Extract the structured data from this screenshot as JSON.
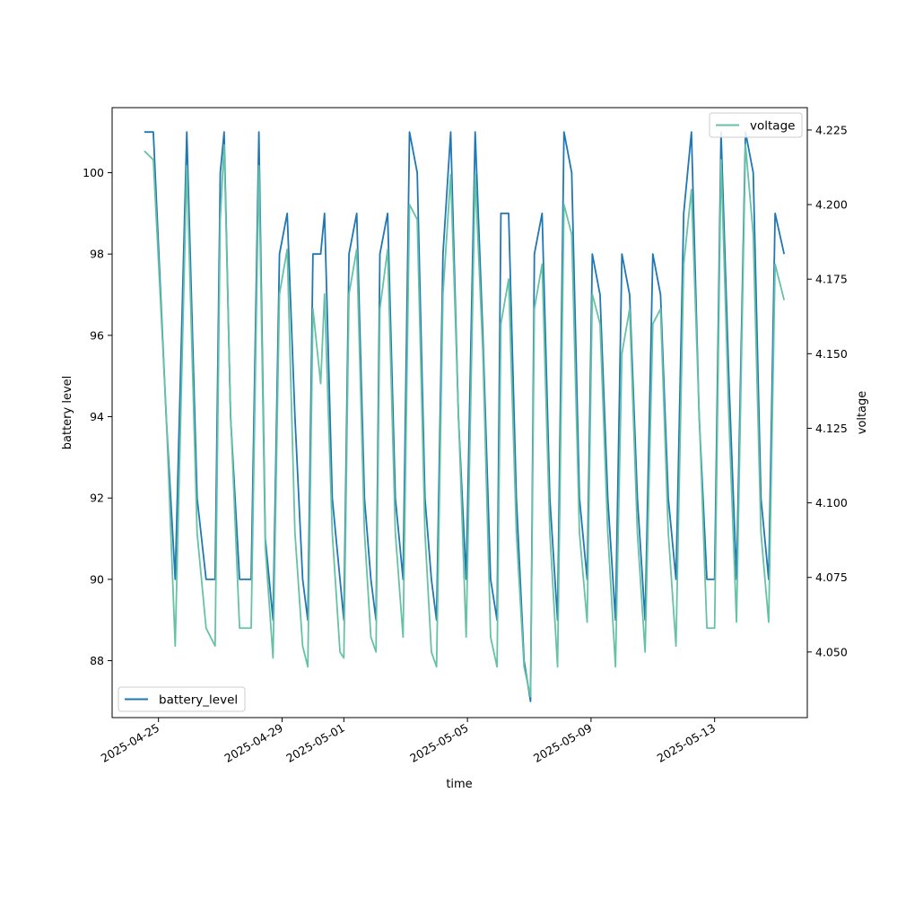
{
  "chart_data": {
    "type": "line",
    "title": "",
    "xlabel": "time",
    "ylabel": "battery level",
    "y2label": "voltage",
    "x_tick_labels": [
      "2025-04-25",
      "2025-04-29",
      "2025-05-01",
      "2025-05-05",
      "2025-05-09",
      "2025-05-13"
    ],
    "y_ticks": [
      88,
      90,
      92,
      94,
      96,
      98,
      100
    ],
    "y_tick_labels": [
      "88",
      "90",
      "92",
      "94",
      "96",
      "98",
      "100"
    ],
    "y2_ticks": [
      4.05,
      4.075,
      4.1,
      4.125,
      4.15,
      4.175,
      4.2,
      4.225
    ],
    "y2_tick_labels": [
      "4.050",
      "4.075",
      "4.100",
      "4.125",
      "4.150",
      "4.175",
      "4.200",
      "4.225"
    ],
    "xlim": [
      "2025-04-23T12:00",
      "2025-05-16T00:00"
    ],
    "ylim": [
      86.6,
      101.6
    ],
    "y2lim": [
      4.028,
      4.2325
    ],
    "legend_primary_position": "lower-left",
    "legend_secondary_position": "upper-right",
    "grid": false,
    "series": [
      {
        "name": "battery_level",
        "axis": "left",
        "color": "#1f77b4",
        "points": [
          [
            "2025-04-24T13:00",
            101
          ],
          [
            "2025-04-24T20:00",
            101
          ],
          [
            "2025-04-25T06:00",
            94
          ],
          [
            "2025-04-25T13:00",
            90
          ],
          [
            "2025-04-25T22:00",
            101
          ],
          [
            "2025-04-26T06:00",
            92
          ],
          [
            "2025-04-26T13:00",
            90
          ],
          [
            "2025-04-26T20:00",
            90
          ],
          [
            "2025-04-27T00:00",
            100
          ],
          [
            "2025-04-27T03:00",
            101
          ],
          [
            "2025-04-27T08:00",
            94
          ],
          [
            "2025-04-27T15:00",
            90
          ],
          [
            "2025-04-28T00:00",
            90
          ],
          [
            "2025-04-28T06:00",
            101
          ],
          [
            "2025-04-28T11:00",
            91
          ],
          [
            "2025-04-28T17:00",
            89
          ],
          [
            "2025-04-28T22:00",
            98
          ],
          [
            "2025-04-29T04:00",
            99
          ],
          [
            "2025-04-29T10:00",
            94
          ],
          [
            "2025-04-29T16:00",
            90
          ],
          [
            "2025-04-29T20:00",
            89
          ],
          [
            "2025-04-30T00:00",
            98
          ],
          [
            "2025-04-30T06:00",
            98
          ],
          [
            "2025-04-30T09:00",
            99
          ],
          [
            "2025-04-30T15:00",
            92
          ],
          [
            "2025-04-30T21:00",
            90
          ],
          [
            "2025-05-01T00:00",
            89
          ],
          [
            "2025-05-01T04:00",
            98
          ],
          [
            "2025-05-01T10:00",
            99
          ],
          [
            "2025-05-01T16:00",
            92
          ],
          [
            "2025-05-01T21:00",
            90
          ],
          [
            "2025-05-02T01:00",
            89
          ],
          [
            "2025-05-02T04:00",
            98
          ],
          [
            "2025-05-02T10:00",
            99
          ],
          [
            "2025-05-02T16:00",
            92
          ],
          [
            "2025-05-02T22:00",
            90
          ],
          [
            "2025-05-03T03:00",
            101
          ],
          [
            "2025-05-03T09:00",
            100
          ],
          [
            "2025-05-03T15:00",
            92
          ],
          [
            "2025-05-03T20:00",
            90
          ],
          [
            "2025-05-04T00:00",
            89
          ],
          [
            "2025-05-04T05:00",
            98
          ],
          [
            "2025-05-04T11:00",
            101
          ],
          [
            "2025-05-04T17:00",
            94
          ],
          [
            "2025-05-04T23:00",
            90
          ],
          [
            "2025-05-05T06:00",
            101
          ],
          [
            "2025-05-05T12:00",
            96
          ],
          [
            "2025-05-05T18:00",
            90
          ],
          [
            "2025-05-05T23:00",
            89
          ],
          [
            "2025-05-06T02:00",
            99
          ],
          [
            "2025-05-06T08:00",
            99
          ],
          [
            "2025-05-06T14:00",
            92
          ],
          [
            "2025-05-06T20:00",
            88
          ],
          [
            "2025-05-07T01:00",
            87
          ],
          [
            "2025-05-07T04:00",
            98
          ],
          [
            "2025-05-07T10:00",
            99
          ],
          [
            "2025-05-07T16:00",
            92
          ],
          [
            "2025-05-07T22:00",
            89
          ],
          [
            "2025-05-08T03:00",
            101
          ],
          [
            "2025-05-08T09:00",
            100
          ],
          [
            "2025-05-08T15:00",
            92
          ],
          [
            "2025-05-08T21:00",
            90
          ],
          [
            "2025-05-09T01:00",
            98
          ],
          [
            "2025-05-09T07:00",
            97
          ],
          [
            "2025-05-09T13:00",
            92
          ],
          [
            "2025-05-09T19:00",
            89
          ],
          [
            "2025-05-10T00:00",
            98
          ],
          [
            "2025-05-10T06:00",
            97
          ],
          [
            "2025-05-10T12:00",
            92
          ],
          [
            "2025-05-10T18:00",
            89
          ],
          [
            "2025-05-11T00:00",
            98
          ],
          [
            "2025-05-11T06:00",
            97
          ],
          [
            "2025-05-11T12:00",
            92
          ],
          [
            "2025-05-11T18:00",
            90
          ],
          [
            "2025-05-12T00:00",
            99
          ],
          [
            "2025-05-12T06:00",
            101
          ],
          [
            "2025-05-12T12:00",
            94
          ],
          [
            "2025-05-12T18:00",
            90
          ],
          [
            "2025-05-13T00:00",
            90
          ],
          [
            "2025-05-13T05:00",
            101
          ],
          [
            "2025-05-13T11:00",
            95
          ],
          [
            "2025-05-13T17:00",
            90
          ],
          [
            "2025-05-14T00:00",
            101
          ],
          [
            "2025-05-14T06:00",
            100
          ],
          [
            "2025-05-14T12:00",
            92
          ],
          [
            "2025-05-14T18:00",
            90
          ],
          [
            "2025-05-14T23:00",
            99
          ],
          [
            "2025-05-15T06:00",
            98
          ]
        ]
      },
      {
        "name": "voltage",
        "axis": "right",
        "color": "#66c2a5",
        "points": [
          [
            "2025-04-24T13:00",
            4.218
          ],
          [
            "2025-04-24T20:00",
            4.215
          ],
          [
            "2025-04-25T06:00",
            4.13
          ],
          [
            "2025-04-25T13:00",
            4.052
          ],
          [
            "2025-04-25T22:00",
            4.213
          ],
          [
            "2025-04-26T06:00",
            4.09
          ],
          [
            "2025-04-26T13:00",
            4.058
          ],
          [
            "2025-04-26T20:00",
            4.052
          ],
          [
            "2025-04-27T00:00",
            4.195
          ],
          [
            "2025-04-27T03:00",
            4.22
          ],
          [
            "2025-04-27T08:00",
            4.13
          ],
          [
            "2025-04-27T15:00",
            4.058
          ],
          [
            "2025-04-28T00:00",
            4.058
          ],
          [
            "2025-04-28T06:00",
            4.213
          ],
          [
            "2025-04-28T11:00",
            4.085
          ],
          [
            "2025-04-28T17:00",
            4.048
          ],
          [
            "2025-04-28T22:00",
            4.17
          ],
          [
            "2025-04-29T04:00",
            4.185
          ],
          [
            "2025-04-29T10:00",
            4.09
          ],
          [
            "2025-04-29T16:00",
            4.052
          ],
          [
            "2025-04-29T20:00",
            4.045
          ],
          [
            "2025-04-30T00:00",
            4.165
          ],
          [
            "2025-04-30T06:00",
            4.14
          ],
          [
            "2025-04-30T09:00",
            4.17
          ],
          [
            "2025-04-30T15:00",
            4.09
          ],
          [
            "2025-04-30T21:00",
            4.05
          ],
          [
            "2025-05-01T00:00",
            4.048
          ],
          [
            "2025-05-01T04:00",
            4.17
          ],
          [
            "2025-05-01T10:00",
            4.185
          ],
          [
            "2025-05-01T16:00",
            4.09
          ],
          [
            "2025-05-01T21:00",
            4.055
          ],
          [
            "2025-05-02T01:00",
            4.05
          ],
          [
            "2025-05-02T04:00",
            4.165
          ],
          [
            "2025-05-02T10:00",
            4.185
          ],
          [
            "2025-05-02T16:00",
            4.09
          ],
          [
            "2025-05-02T22:00",
            4.055
          ],
          [
            "2025-05-03T03:00",
            4.2
          ],
          [
            "2025-05-03T09:00",
            4.195
          ],
          [
            "2025-05-03T15:00",
            4.09
          ],
          [
            "2025-05-03T20:00",
            4.05
          ],
          [
            "2025-05-04T00:00",
            4.045
          ],
          [
            "2025-05-04T05:00",
            4.17
          ],
          [
            "2025-05-04T11:00",
            4.21
          ],
          [
            "2025-05-04T17:00",
            4.13
          ],
          [
            "2025-05-04T23:00",
            4.055
          ],
          [
            "2025-05-05T06:00",
            4.21
          ],
          [
            "2025-05-05T12:00",
            4.15
          ],
          [
            "2025-05-05T18:00",
            4.055
          ],
          [
            "2025-05-05T23:00",
            4.045
          ],
          [
            "2025-05-06T02:00",
            4.16
          ],
          [
            "2025-05-06T08:00",
            4.175
          ],
          [
            "2025-05-06T14:00",
            4.09
          ],
          [
            "2025-05-06T20:00",
            4.045
          ],
          [
            "2025-05-07T01:00",
            4.035
          ],
          [
            "2025-05-07T04:00",
            4.165
          ],
          [
            "2025-05-07T10:00",
            4.18
          ],
          [
            "2025-05-07T16:00",
            4.09
          ],
          [
            "2025-05-07T22:00",
            4.045
          ],
          [
            "2025-05-08T03:00",
            4.2
          ],
          [
            "2025-05-08T09:00",
            4.19
          ],
          [
            "2025-05-08T15:00",
            4.09
          ],
          [
            "2025-05-08T21:00",
            4.06
          ],
          [
            "2025-05-09T01:00",
            4.17
          ],
          [
            "2025-05-09T07:00",
            4.16
          ],
          [
            "2025-05-09T13:00",
            4.09
          ],
          [
            "2025-05-09T19:00",
            4.045
          ],
          [
            "2025-05-10T00:00",
            4.15
          ],
          [
            "2025-05-10T06:00",
            4.165
          ],
          [
            "2025-05-10T12:00",
            4.09
          ],
          [
            "2025-05-10T18:00",
            4.05
          ],
          [
            "2025-05-11T00:00",
            4.16
          ],
          [
            "2025-05-11T06:00",
            4.165
          ],
          [
            "2025-05-11T12:00",
            4.09
          ],
          [
            "2025-05-11T18:00",
            4.052
          ],
          [
            "2025-05-12T00:00",
            4.18
          ],
          [
            "2025-05-12T06:00",
            4.205
          ],
          [
            "2025-05-12T12:00",
            4.13
          ],
          [
            "2025-05-12T18:00",
            4.058
          ],
          [
            "2025-05-13T00:00",
            4.058
          ],
          [
            "2025-05-13T05:00",
            4.215
          ],
          [
            "2025-05-13T11:00",
            4.13
          ],
          [
            "2025-05-13T17:00",
            4.06
          ],
          [
            "2025-05-14T00:00",
            4.22
          ],
          [
            "2025-05-14T06:00",
            4.19
          ],
          [
            "2025-05-14T12:00",
            4.09
          ],
          [
            "2025-05-14T18:00",
            4.06
          ],
          [
            "2025-05-14T23:00",
            4.18
          ],
          [
            "2025-05-15T06:00",
            4.168
          ]
        ]
      }
    ]
  }
}
